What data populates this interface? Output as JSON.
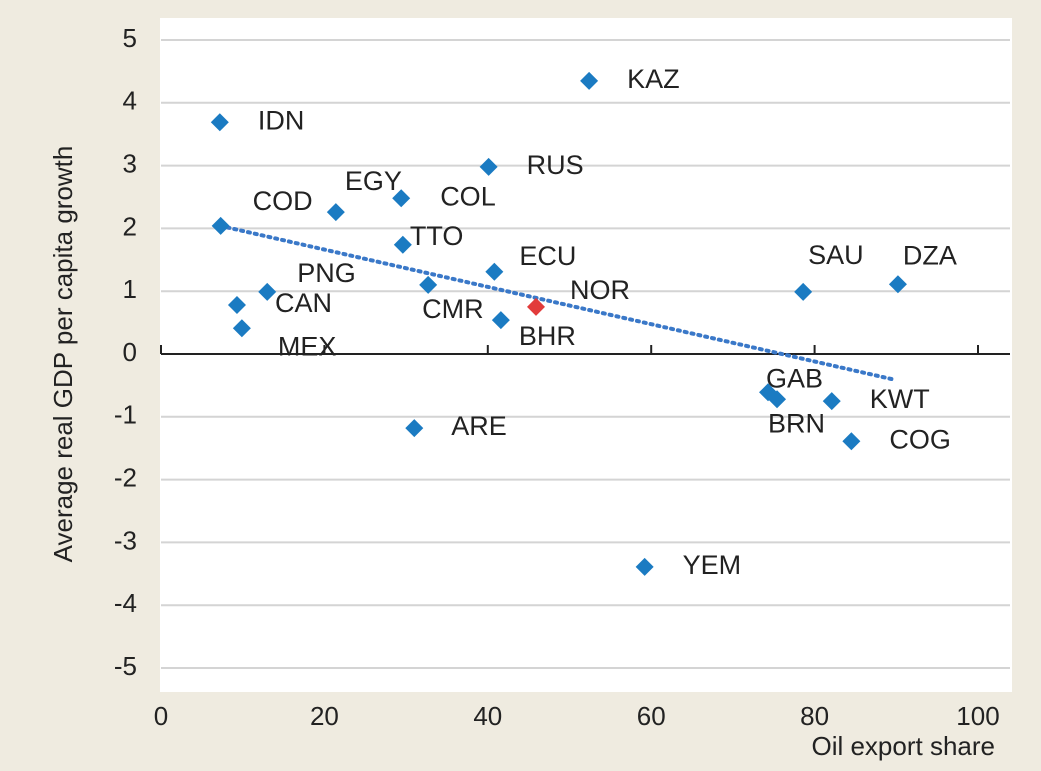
{
  "chart_data": {
    "type": "scatter",
    "ylabel": "Average real GDP per capita growth",
    "xlabel": "Oil export share",
    "categories": [
      "KAZ",
      "IDN",
      "RUS",
      "COD",
      "EGY",
      "COL",
      "TTO",
      "ECU",
      "CMR",
      "PNG",
      "CAN",
      "NOR",
      "BHR",
      "MEX",
      "SAU",
      "DZA",
      "GAB",
      "BRN",
      "KWT",
      "COG",
      "ARE",
      "YEM"
    ],
    "x": [
      52.4,
      7.2,
      40.1,
      7.3,
      21.4,
      29.4,
      29.6,
      40.8,
      32.7,
      13.0,
      9.3,
      45.9,
      41.6,
      9.9,
      78.6,
      90.2,
      74.3,
      75.4,
      82.1,
      84.5,
      31.0,
      59.2
    ],
    "values": [
      4.35,
      3.69,
      2.98,
      2.04,
      2.26,
      2.48,
      1.74,
      1.31,
      1.1,
      0.99,
      0.78,
      0.75,
      0.54,
      0.41,
      0.99,
      1.11,
      -0.61,
      -0.72,
      -0.75,
      -1.39,
      -1.18,
      -3.39
    ],
    "color": "#1b7bc2",
    "point_colors": {
      "NOR": "#e23b3b"
    },
    "trendline": {
      "x": [
        7.3,
        89.8
      ],
      "values": [
        2.04,
        -0.41
      ],
      "color": "#3a78c8"
    },
    "xlim": [
      0,
      100
    ],
    "xticks": [
      0,
      20,
      40,
      60,
      80,
      100
    ],
    "ylim": [
      -5,
      5
    ],
    "yticks": [
      -5,
      -4,
      -3,
      -2,
      -1,
      0,
      1,
      2,
      3,
      4,
      5
    ],
    "grid": true
  }
}
